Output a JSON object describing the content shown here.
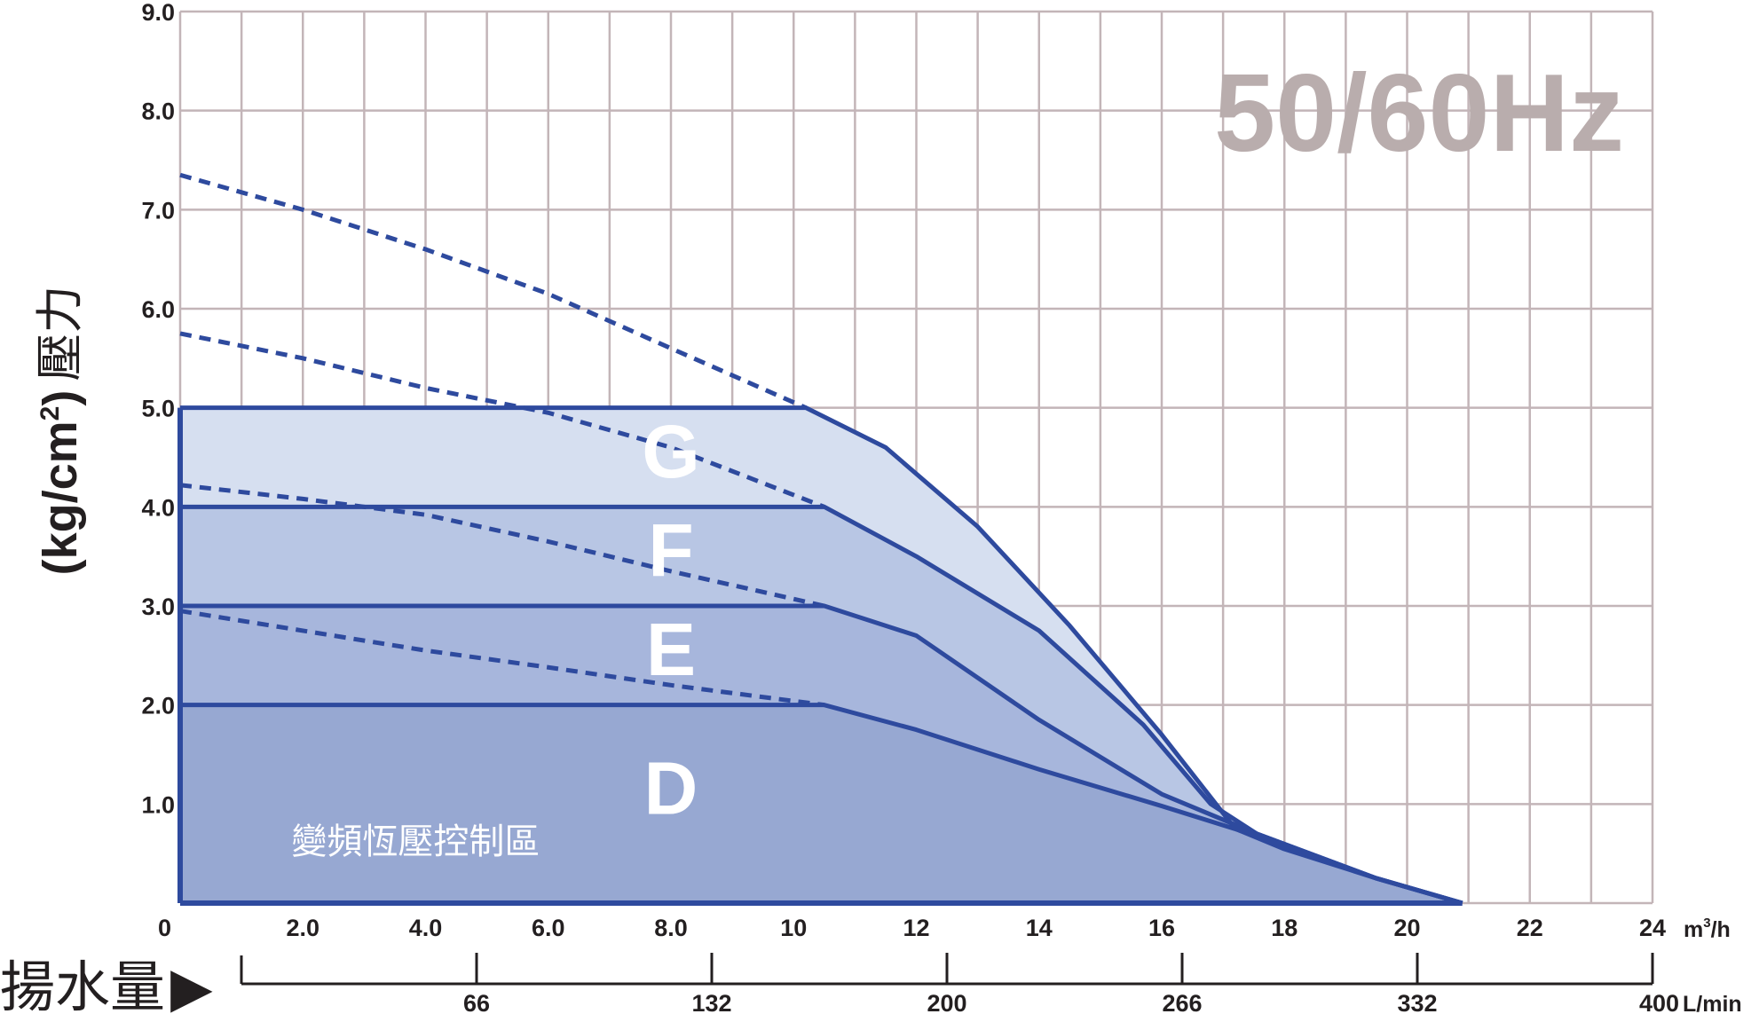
{
  "chart_data": {
    "type": "area",
    "title": "50/60Hz",
    "ylabel": "壓力 (kg/cm2)",
    "ylabel_parts": {
      "zh": "壓力",
      "open": "(kg/cm",
      "sup": "2",
      "close": ")"
    },
    "xlabel": "揚水量",
    "xlabel_arrow": "▶",
    "xlim": [
      0,
      24
    ],
    "ylim": [
      0,
      9
    ],
    "grid": true,
    "x_unit": {
      "base": "m",
      "sup": "3",
      "rest": "/h"
    },
    "x_tick_labels": [
      {
        "x": 0,
        "label": "0"
      },
      {
        "x": 2,
        "label": "2.0"
      },
      {
        "x": 4,
        "label": "4.0"
      },
      {
        "x": 6,
        "label": "6.0"
      },
      {
        "x": 8,
        "label": "8.0"
      },
      {
        "x": 10,
        "label": "10"
      },
      {
        "x": 12,
        "label": "12"
      },
      {
        "x": 14,
        "label": "14"
      },
      {
        "x": 16,
        "label": "16"
      },
      {
        "x": 18,
        "label": "18"
      },
      {
        "x": 20,
        "label": "20"
      },
      {
        "x": 22,
        "label": "22"
      },
      {
        "x": 24,
        "label": "24"
      }
    ],
    "y_tick_labels": [
      {
        "y": 1,
        "label": "1.0"
      },
      {
        "y": 2,
        "label": "2.0"
      },
      {
        "y": 3,
        "label": "3.0"
      },
      {
        "y": 4,
        "label": "4.0"
      },
      {
        "y": 5,
        "label": "5.0"
      },
      {
        "y": 6,
        "label": "6.0"
      },
      {
        "y": 7,
        "label": "7.0"
      },
      {
        "y": 8,
        "label": "8.0"
      },
      {
        "y": 9,
        "label": "9.0"
      }
    ],
    "secondary_x_axis": {
      "unit": "L/min",
      "ticks": [
        {
          "x": 4,
          "label": "66"
        },
        {
          "x": 8,
          "label": "132"
        },
        {
          "x": 12,
          "label": "200"
        },
        {
          "x": 16,
          "label": "266"
        },
        {
          "x": 20,
          "label": "332"
        },
        {
          "x": 24,
          "label": "400"
        }
      ]
    },
    "zones": [
      {
        "name": "G",
        "label_at": [
          8,
          4.3
        ],
        "color": "#d6dff0",
        "curve": [
          [
            0,
            5.0
          ],
          [
            10.2,
            5.0
          ],
          [
            11.5,
            4.6
          ],
          [
            13,
            3.8
          ],
          [
            14.5,
            2.8
          ],
          [
            16,
            1.7
          ],
          [
            17.2,
            0.75
          ],
          [
            17.98,
            0.55
          ],
          [
            19.5,
            0.25
          ],
          [
            20.9,
            0.0
          ]
        ]
      },
      {
        "name": "F",
        "label_at": [
          8,
          3.3
        ],
        "color": "#b8c6e4",
        "curve": [
          [
            0,
            4.0
          ],
          [
            10.5,
            4.0
          ],
          [
            12,
            3.5
          ],
          [
            14,
            2.75
          ],
          [
            15.7,
            1.8
          ],
          [
            16.8,
            1.0
          ],
          [
            17.55,
            0.7
          ],
          [
            19.5,
            0.25
          ],
          [
            20.9,
            0.0
          ]
        ]
      },
      {
        "name": "E",
        "label_at": [
          8,
          2.3
        ],
        "color": "#a7b6dc",
        "curve": [
          [
            0,
            3.0
          ],
          [
            10.5,
            3.0
          ],
          [
            12,
            2.7
          ],
          [
            14,
            1.85
          ],
          [
            16,
            1.1
          ],
          [
            17.55,
            0.7
          ],
          [
            19.5,
            0.25
          ],
          [
            20.9,
            0.0
          ]
        ]
      },
      {
        "name": "D",
        "label_at": [
          8,
          0.9
        ],
        "color": "#97a8d2",
        "curve": [
          [
            0,
            2.0
          ],
          [
            10.5,
            2.0
          ],
          [
            12,
            1.75
          ],
          [
            14,
            1.35
          ],
          [
            16,
            0.98
          ],
          [
            17.55,
            0.68
          ],
          [
            19.5,
            0.25
          ],
          [
            20.9,
            0.0
          ]
        ]
      }
    ],
    "dashed_extensions": [
      {
        "points": [
          [
            0,
            7.35
          ],
          [
            2,
            7.0
          ],
          [
            4,
            6.6
          ],
          [
            6,
            6.15
          ],
          [
            8,
            5.6
          ],
          [
            10.2,
            5.0
          ]
        ]
      },
      {
        "points": [
          [
            0,
            5.75
          ],
          [
            2,
            5.5
          ],
          [
            4,
            5.2
          ],
          [
            6,
            4.95
          ],
          [
            8,
            4.6
          ],
          [
            10.5,
            4.0
          ]
        ]
      },
      {
        "points": [
          [
            0,
            4.22
          ],
          [
            2,
            4.08
          ],
          [
            4,
            3.92
          ],
          [
            6,
            3.65
          ],
          [
            8,
            3.35
          ],
          [
            10.5,
            3.0
          ]
        ]
      },
      {
        "points": [
          [
            0,
            2.95
          ],
          [
            2,
            2.75
          ],
          [
            4,
            2.55
          ],
          [
            6,
            2.38
          ],
          [
            8,
            2.2
          ],
          [
            10.5,
            2.0
          ]
        ]
      }
    ],
    "zone_text": "變頻恆壓控制區",
    "zone_text_at": [
      3,
      0.5
    ],
    "line_color": "#2e4a9e",
    "grid_color": "#c3b5b8"
  }
}
